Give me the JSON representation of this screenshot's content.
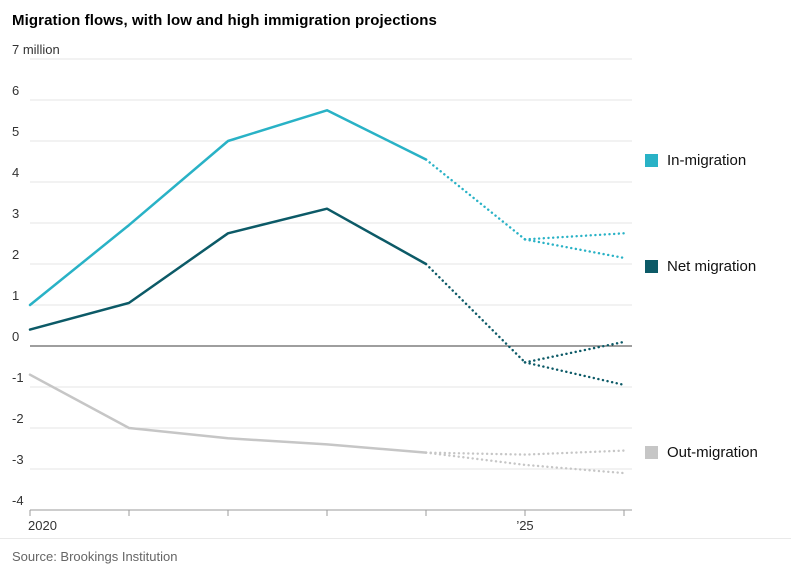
{
  "title": "Migration flows, with low and high immigration projections",
  "source": "Source: Brookings Institution",
  "legend": [
    {
      "label": "In-migration",
      "color": "#29b2c6"
    },
    {
      "label": "Net migration",
      "color": "#0c5a67"
    },
    {
      "label": "Out-migration",
      "color": "#c6c6c6"
    }
  ],
  "chart_data": {
    "type": "line",
    "title": "Migration flows, with low and high immigration projections",
    "units": "million",
    "ylim": [
      -4,
      7
    ],
    "xlim": [
      2020,
      2026
    ],
    "grid": true,
    "legend_position": "right",
    "y_levels": [
      {
        "v": 7,
        "label": "7 million"
      },
      {
        "v": 6,
        "label": "6"
      },
      {
        "v": 5,
        "label": "5"
      },
      {
        "v": 4,
        "label": "4"
      },
      {
        "v": 3,
        "label": "3"
      },
      {
        "v": 2,
        "label": "2"
      },
      {
        "v": 1,
        "label": "1"
      },
      {
        "v": 0,
        "label": "0"
      },
      {
        "v": -1,
        "label": "-1"
      },
      {
        "v": -2,
        "label": "-2"
      },
      {
        "v": -3,
        "label": "-3"
      },
      {
        "v": -4,
        "label": "-4"
      }
    ],
    "x_ticks": [
      {
        "year": 2020,
        "label": "2020"
      },
      {
        "year": 2021,
        "label": ""
      },
      {
        "year": 2022,
        "label": ""
      },
      {
        "year": 2023,
        "label": ""
      },
      {
        "year": 2024,
        "label": ""
      },
      {
        "year": 2025,
        "label": "’25"
      },
      {
        "year": 2026,
        "label": ""
      }
    ],
    "series": [
      {
        "id": "in-migration",
        "name": "In-migration",
        "color": "#29b2c6",
        "solid": [
          [
            2020,
            1.0
          ],
          [
            2021,
            2.95
          ],
          [
            2022,
            5.0
          ],
          [
            2023,
            5.75
          ],
          [
            2024,
            4.55
          ]
        ],
        "projection": [
          [
            2024,
            4.55
          ],
          [
            2025,
            2.6
          ]
        ],
        "projection_high": [
          [
            2025,
            2.6
          ],
          [
            2026,
            2.75
          ]
        ],
        "projection_low": [
          [
            2025,
            2.6
          ],
          [
            2026,
            2.15
          ]
        ]
      },
      {
        "id": "net-migration",
        "name": "Net migration",
        "color": "#0c5a67",
        "solid": [
          [
            2020,
            0.4
          ],
          [
            2021,
            1.05
          ],
          [
            2022,
            2.75
          ],
          [
            2023,
            3.35
          ],
          [
            2024,
            2.0
          ]
        ],
        "projection": [
          [
            2024,
            2.0
          ],
          [
            2025,
            -0.4
          ]
        ],
        "projection_high": [
          [
            2025,
            -0.4
          ],
          [
            2026,
            0.1
          ]
        ],
        "projection_low": [
          [
            2025,
            -0.4
          ],
          [
            2026,
            -0.95
          ]
        ]
      },
      {
        "id": "out-migration",
        "name": "Out-migration",
        "color": "#c6c6c6",
        "solid": [
          [
            2020,
            -0.7
          ],
          [
            2021,
            -2.0
          ],
          [
            2022,
            -2.25
          ],
          [
            2023,
            -2.4
          ],
          [
            2024,
            -2.6
          ]
        ],
        "projection_high": [
          [
            2024,
            -2.6
          ],
          [
            2025,
            -2.65
          ],
          [
            2026,
            -2.55
          ]
        ],
        "projection_low": [
          [
            2024,
            -2.6
          ],
          [
            2025,
            -2.9
          ],
          [
            2026,
            -3.1
          ]
        ]
      }
    ]
  }
}
